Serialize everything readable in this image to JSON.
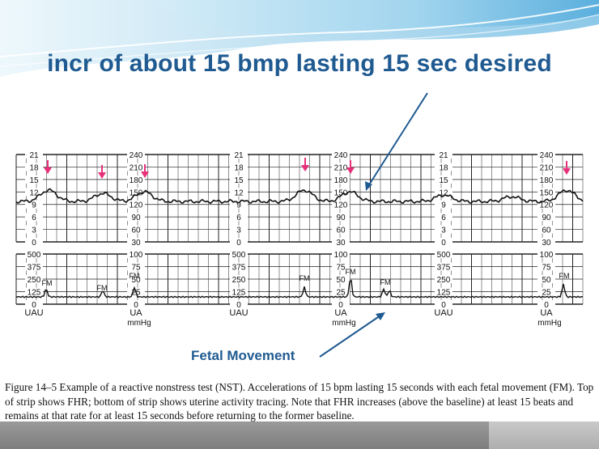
{
  "title": "incr of about 15 bmp lasting 15 sec desired",
  "fetal_movement_label": "Fetal Movement",
  "caption": "Figure 14–5   Example of a reactive nonstress test (NST). Accelerations of 15 bpm lasting 15 seconds with each fetal movement (FM). Top of strip shows FHR; bottom of strip shows uterine activity tracing. Note that FHR increases (above the baseline) at least 15 beats and remains at that rate for at least 15 seconds before returning to the former baseline.",
  "colors": {
    "title": "#1f5a91",
    "arrow": "#1f5a91",
    "marker": "#e8307a",
    "trace": "#111111",
    "grid": "#222222"
  },
  "fhr_scale_a": [
    "21",
    "18",
    "15",
    "12",
    "9",
    "6",
    "3",
    "0"
  ],
  "fhr_scale_b": [
    "240",
    "210",
    "180",
    "150",
    "120",
    "90",
    "60",
    "30"
  ],
  "ua_scale_a": [
    "500",
    "375",
    "250",
    "125",
    "0"
  ],
  "ua_scale_b": [
    "100",
    "75",
    "50",
    "25",
    "0"
  ],
  "ua_axis_label_a": "UAU",
  "ua_axis_label_b": "UA",
  "ua_axis_unit": "mmHg",
  "fm_mark": "FM"
}
